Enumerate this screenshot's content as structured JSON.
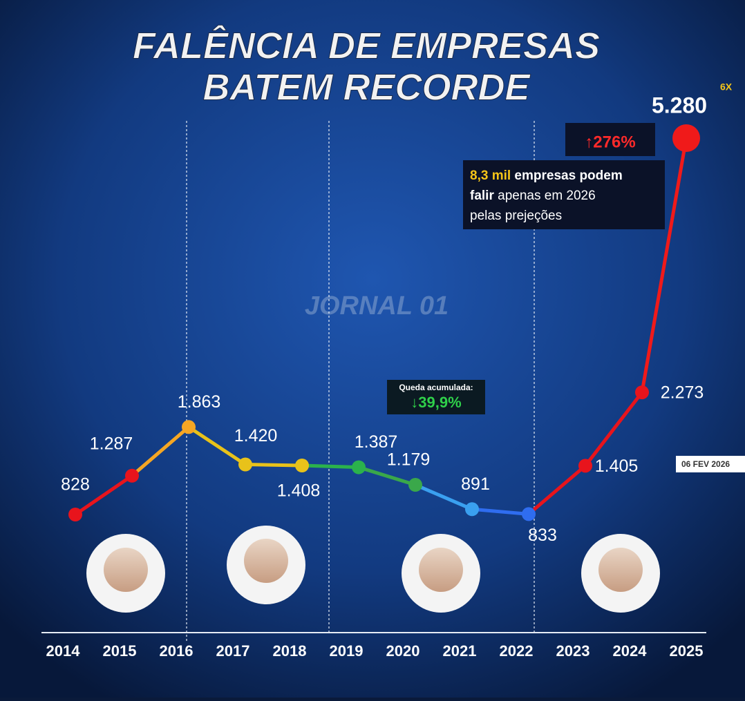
{
  "chart_data": {
    "type": "line",
    "title": [
      "FALÊNCIA DE EMPRESAS",
      "BATEM RECORDE"
    ],
    "categories": [
      "2014",
      "2015",
      "2016",
      "2017",
      "2018",
      "2019",
      "2020",
      "2021",
      "2022",
      "2023",
      "2024",
      "2025"
    ],
    "values": [
      828,
      1287,
      1863,
      1420,
      1408,
      1387,
      1179,
      891,
      833,
      1405,
      2273,
      5280
    ],
    "value_labels": [
      "828",
      "1.287",
      "1.863",
      "1.420",
      "1.408",
      "1.387",
      "1.179",
      "891",
      "833",
      "1.405",
      "2.273",
      "5.280"
    ],
    "point_colors": [
      "#e8141c",
      "#e8141c",
      "#f5a623",
      "#e8c21a",
      "#e8c21a",
      "#2bb24c",
      "#3aa84a",
      "#3aa0f0",
      "#2f6df0",
      "#e8141c",
      "#e8141c",
      "#f01a1a"
    ],
    "annotations": {
      "multiplier": "6X",
      "increase": "↑276%",
      "projection": [
        "8,3 mil",
        " empresas podem",
        "falir",
        " apenas em 2026",
        "pelas prejeções"
      ],
      "drop_title": "Queda acumulada:",
      "drop_value": "↓39,9%",
      "watermark": "JORNAL 01",
      "date": "06 FEV 2026"
    }
  }
}
